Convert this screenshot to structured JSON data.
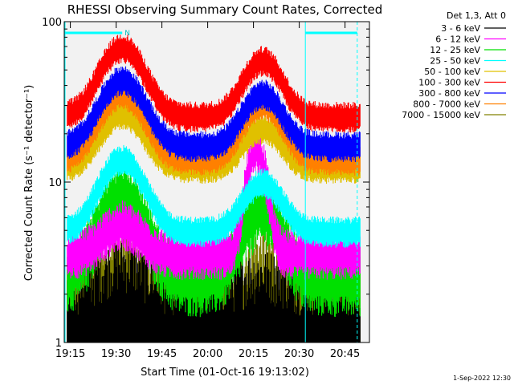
{
  "chart_data": {
    "type": "line",
    "title": "RHESSI Observing Summary Count Rates, Corrected",
    "xlabel": "Start Time (01-Oct-16 19:13:02)",
    "ylabel": "Corrected Count Rate (s⁻¹ detector⁻¹)",
    "yscale": "log",
    "ylim": [
      1,
      100
    ],
    "xlim_minutes_after_start": [
      0,
      100
    ],
    "x_ticks": [
      {
        "label": "19:15",
        "min": 2
      },
      {
        "label": "19:30",
        "min": 17
      },
      {
        "label": "19:45",
        "min": 32
      },
      {
        "label": "20:00",
        "min": 47
      },
      {
        "label": "20:15",
        "min": 62
      },
      {
        "label": "20:30",
        "min": 77
      },
      {
        "label": "20:45",
        "min": 92
      }
    ],
    "y_ticks": [
      {
        "label": "1",
        "value": 1
      },
      {
        "label": "10",
        "value": 10
      },
      {
        "label": "100",
        "value": 100
      }
    ],
    "legend_header": "Det 1,3, Att 0",
    "legend_position": "top-right",
    "series": [
      {
        "name": "3 - 6 keV",
        "color": "#000000",
        "kind": "low-noise",
        "base": 1.6,
        "peak1": 2.2,
        "peak2": 1.9
      },
      {
        "name": "6 - 12 keV",
        "color": "#ff00ff",
        "kind": "flare",
        "base": 3.5,
        "peak1": 8.0,
        "peak2": 16.0
      },
      {
        "name": "12 - 25 keV",
        "color": "#00e000",
        "kind": "band",
        "base": 2.6,
        "peak1": 8.5,
        "peak2": 7.0
      },
      {
        "name": "25 - 50 keV",
        "color": "#00ffff",
        "kind": "smooth",
        "base": 5.0,
        "peak1": 14.0,
        "peak2": 10.0
      },
      {
        "name": "50 - 100 keV",
        "color": "#e0c000",
        "kind": "smooth",
        "base": 12.5,
        "peak1": 27.0,
        "peak2": 22.0
      },
      {
        "name": "100 - 300 keV",
        "color": "#ff0000",
        "kind": "smooth",
        "base": 26.0,
        "peak1": 70.0,
        "peak2": 58.0
      },
      {
        "name": "300 - 800 keV",
        "color": "#0000ff",
        "kind": "smooth",
        "base": 17.0,
        "peak1": 44.0,
        "peak2": 36.0
      },
      {
        "name": "800 - 7000 keV",
        "color": "#ff8000",
        "kind": "smooth",
        "base": 14.0,
        "peak1": 36.0,
        "peak2": 31.0
      },
      {
        "name": "7000 - 15000 keV",
        "color": "#808000",
        "kind": "low-noise",
        "base": 1.9,
        "peak1": 3.0,
        "peak2": 2.6
      }
    ],
    "peaks_min": [
      19,
      65
    ],
    "data_window_min": [
      1,
      97
    ],
    "attenuator_bars": [
      {
        "label": "N",
        "start_min": 0,
        "end_min": 19
      },
      {
        "label": "",
        "start_min": 79,
        "end_min": 96
      }
    ],
    "vertical_markers_min": [
      {
        "min": 79,
        "style": "solid"
      },
      {
        "min": 96,
        "style": "dashed"
      }
    ],
    "grid": false
  },
  "timestamp": "1-Sep-2022 12:30"
}
